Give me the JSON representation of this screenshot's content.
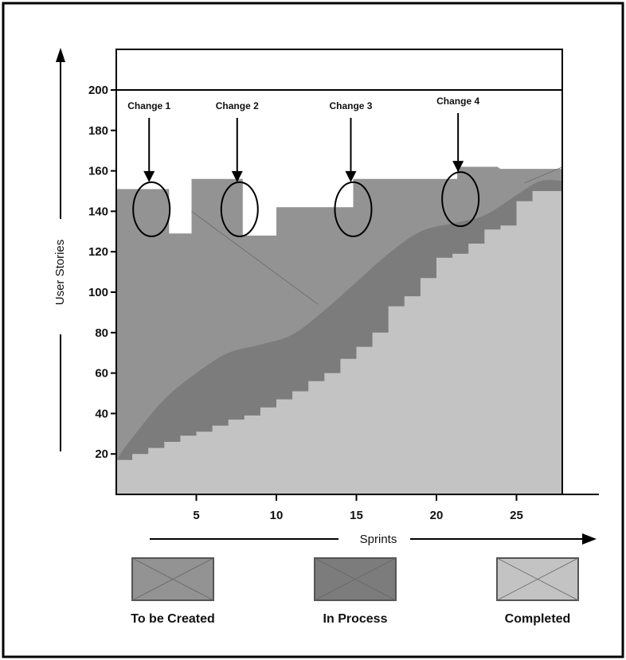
{
  "chart_data": {
    "type": "area",
    "xlabel": "Sprints",
    "ylabel": "User Stories",
    "xlim": [
      0,
      30
    ],
    "ylim": [
      0,
      220
    ],
    "x_ticks": [
      5,
      10,
      15,
      20,
      25
    ],
    "y_ticks": [
      20,
      40,
      60,
      80,
      100,
      120,
      140,
      160,
      180,
      200
    ],
    "reference_line": 200,
    "grid": false,
    "legend_position": "bottom",
    "colors": {
      "to_be_created": "#939393",
      "in_process": "#7c7c7c",
      "completed": "#c3c3c3"
    },
    "series": [
      {
        "name": "To be Created",
        "points": [
          [
            0,
            151
          ],
          [
            2,
            151
          ],
          [
            2,
            151
          ],
          [
            3.3,
            151
          ],
          [
            3.3,
            129
          ],
          [
            4.7,
            129
          ],
          [
            4.7,
            156
          ],
          [
            6.5,
            156
          ],
          [
            6.5,
            156
          ],
          [
            7.9,
            156
          ],
          [
            7.9,
            128
          ],
          [
            10,
            128
          ],
          [
            10,
            142
          ],
          [
            14.8,
            142
          ],
          [
            14.8,
            156
          ],
          [
            21.3,
            156
          ],
          [
            21.3,
            162
          ],
          [
            23.8,
            162
          ],
          [
            24,
            161
          ],
          [
            27.9,
            161
          ]
        ]
      },
      {
        "name": "In Process",
        "points": [
          [
            0,
            17
          ],
          [
            1,
            28
          ],
          [
            3,
            47
          ],
          [
            5,
            60
          ],
          [
            7,
            70
          ],
          [
            9,
            74
          ],
          [
            11,
            79
          ],
          [
            13,
            91
          ],
          [
            15,
            105
          ],
          [
            17,
            119
          ],
          [
            19,
            130
          ],
          [
            21,
            134
          ],
          [
            23,
            138
          ],
          [
            25,
            148
          ],
          [
            26.5,
            155
          ],
          [
            27.9,
            155
          ]
        ]
      },
      {
        "name": "Completed",
        "x": [
          0,
          1,
          2,
          3,
          4,
          5,
          6,
          7,
          8,
          9,
          10,
          11,
          12,
          13,
          14,
          15,
          16,
          17,
          18,
          19,
          20,
          21,
          22,
          23,
          24,
          25,
          26,
          27,
          27.9
        ],
        "values": [
          17,
          20,
          23,
          26,
          29,
          31,
          34,
          37,
          39,
          43,
          47,
          51,
          56,
          60,
          67,
          73,
          80,
          93,
          98,
          107,
          117,
          119,
          124,
          131,
          133,
          145,
          150,
          150,
          150
        ]
      }
    ],
    "annotations": [
      {
        "label": "Change 1",
        "x": 2.2,
        "y": 141
      },
      {
        "label": "Change 2",
        "x": 7.7,
        "y": 141
      },
      {
        "label": "Change 3",
        "x": 14.8,
        "y": 141
      },
      {
        "label": "Change 4",
        "x": 21.5,
        "y": 146
      }
    ],
    "legend": [
      {
        "label": "To be Created",
        "series": "to_be_created"
      },
      {
        "label": "In Process",
        "series": "in_process"
      },
      {
        "label": "Completed",
        "series": "completed"
      }
    ]
  }
}
